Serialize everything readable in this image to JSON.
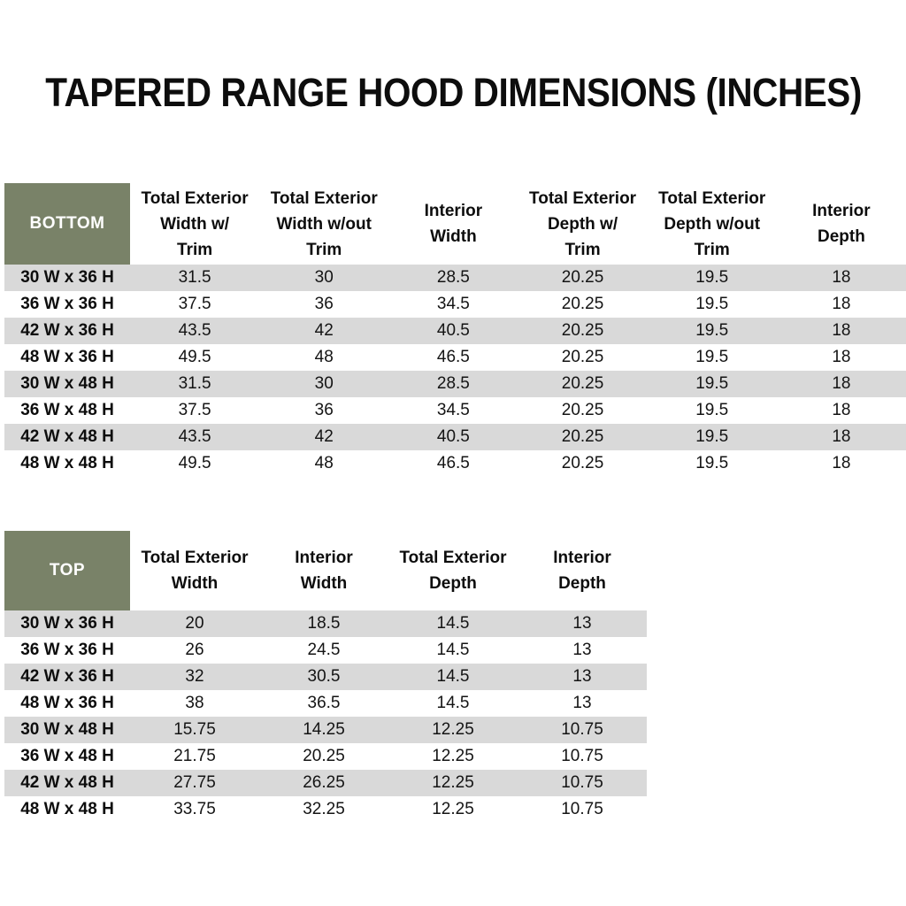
{
  "title": "TAPERED RANGE HOOD DIMENSIONS (INCHES)",
  "colors": {
    "header_green": "#798268",
    "stripe_gray": "#d9d9d9",
    "header_text_white": "#ffffff",
    "body_text": "#111111"
  },
  "bottom_table": {
    "label": "BOTTOM",
    "columns": [
      "Total Exterior\nWidth w/\nTrim",
      "Total Exterior\nWidth w/out\nTrim",
      "Interior\nWidth",
      "Total Exterior\nDepth w/\nTrim",
      "Total Exterior\nDepth w/out\nTrim",
      "Interior\nDepth"
    ],
    "rows": [
      {
        "size": "30 W x 36 H",
        "values": [
          "31.5",
          "30",
          "28.5",
          "20.25",
          "19.5",
          "18"
        ]
      },
      {
        "size": "36 W x 36 H",
        "values": [
          "37.5",
          "36",
          "34.5",
          "20.25",
          "19.5",
          "18"
        ]
      },
      {
        "size": "42 W x 36 H",
        "values": [
          "43.5",
          "42",
          "40.5",
          "20.25",
          "19.5",
          "18"
        ]
      },
      {
        "size": "48 W x 36 H",
        "values": [
          "49.5",
          "48",
          "46.5",
          "20.25",
          "19.5",
          "18"
        ]
      },
      {
        "size": "30 W x 48 H",
        "values": [
          "31.5",
          "30",
          "28.5",
          "20.25",
          "19.5",
          "18"
        ]
      },
      {
        "size": "36 W x 48 H",
        "values": [
          "37.5",
          "36",
          "34.5",
          "20.25",
          "19.5",
          "18"
        ]
      },
      {
        "size": "42 W x 48 H",
        "values": [
          "43.5",
          "42",
          "40.5",
          "20.25",
          "19.5",
          "18"
        ]
      },
      {
        "size": "48 W x 48 H",
        "values": [
          "49.5",
          "48",
          "46.5",
          "20.25",
          "19.5",
          "18"
        ]
      }
    ]
  },
  "top_table": {
    "label": "TOP",
    "columns": [
      "Total Exterior\nWidth",
      "Interior\nWidth",
      "Total Exterior\nDepth",
      "Interior\nDepth"
    ],
    "rows": [
      {
        "size": "30 W x 36 H",
        "values": [
          "20",
          "18.5",
          "14.5",
          "13"
        ]
      },
      {
        "size": "36 W x 36 H",
        "values": [
          "26",
          "24.5",
          "14.5",
          "13"
        ]
      },
      {
        "size": "42 W x 36 H",
        "values": [
          "32",
          "30.5",
          "14.5",
          "13"
        ]
      },
      {
        "size": "48 W x 36 H",
        "values": [
          "38",
          "36.5",
          "14.5",
          "13"
        ]
      },
      {
        "size": "30 W x 48 H",
        "values": [
          "15.75",
          "14.25",
          "12.25",
          "10.75"
        ]
      },
      {
        "size": "36 W x 48 H",
        "values": [
          "21.75",
          "20.25",
          "12.25",
          "10.75"
        ]
      },
      {
        "size": "42 W x 48 H",
        "values": [
          "27.75",
          "26.25",
          "12.25",
          "10.75"
        ]
      },
      {
        "size": "48 W x 48 H",
        "values": [
          "33.75",
          "32.25",
          "12.25",
          "10.75"
        ]
      }
    ]
  }
}
